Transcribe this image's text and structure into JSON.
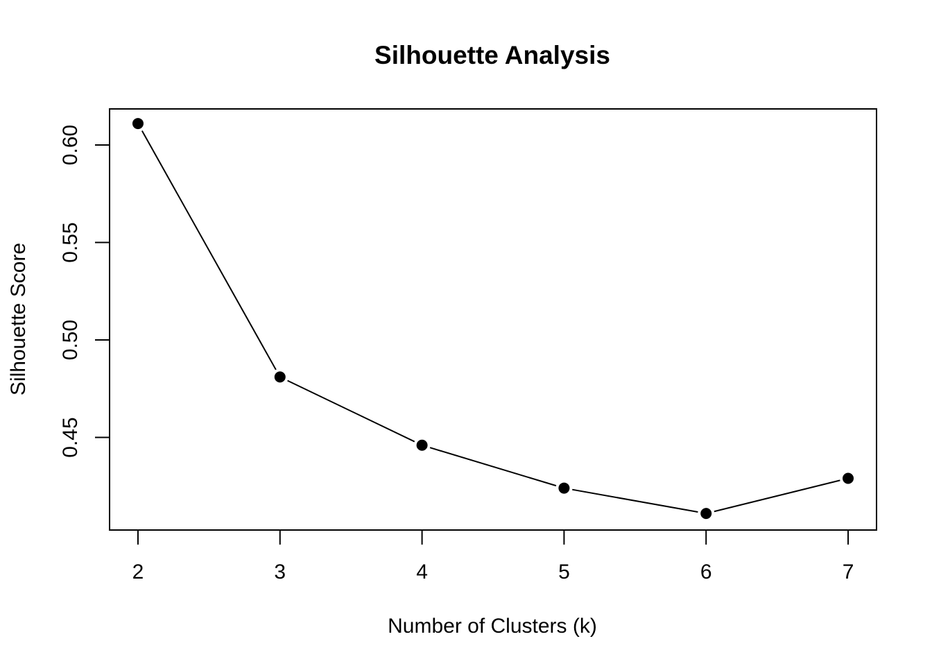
{
  "chart_data": {
    "type": "line",
    "title": "Silhouette Analysis",
    "xlabel": "Number of Clusters (k)",
    "ylabel": "Silhouette Score",
    "x": [
      2,
      3,
      4,
      5,
      6,
      7
    ],
    "series": [
      {
        "values": [
          0.611,
          0.481,
          0.446,
          0.424,
          0.411,
          0.429
        ]
      }
    ],
    "x_ticks": [
      "2",
      "3",
      "4",
      "5",
      "6",
      "7"
    ],
    "y_ticks": [
      "0.45",
      "0.50",
      "0.55",
      "0.60"
    ],
    "xlim": [
      1.8,
      7.2
    ],
    "ylim": [
      0.4025,
      0.6185
    ],
    "grid": false,
    "legend": "none",
    "line_color": "#000000",
    "marker_color": "#000000"
  }
}
